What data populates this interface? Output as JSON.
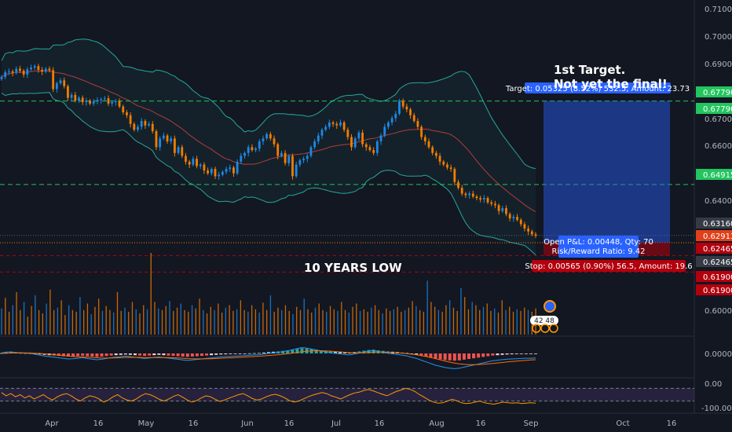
{
  "chart_data": [
    {
      "type": "candlestick",
      "title": "",
      "x_ticks": [
        "Apr",
        "16",
        "May",
        "16",
        "Jun",
        "16",
        "Jul",
        "16",
        "Aug",
        "16",
        "Sep",
        "Oct",
        "16"
      ],
      "y_ticks": [
        "0.71000",
        "0.70000",
        "0.69000",
        "0.68000",
        "0.67000",
        "0.66000",
        "0.64000",
        "0.60000"
      ],
      "ylim": [
        0.6045,
        0.7105
      ],
      "series": [
        {
          "values_close": [
            0.6862,
            0.6878,
            0.6881,
            0.6876,
            0.689,
            0.6883,
            0.687,
            0.6888,
            0.6894,
            0.6899,
            0.6886,
            0.688,
            0.689,
            0.6885,
            0.682,
            0.684,
            0.685,
            0.683,
            0.679,
            0.68,
            0.678,
            0.679,
            0.6775,
            0.678,
            0.677,
            0.6778,
            0.6782,
            0.6785,
            0.6788,
            0.677,
            0.6775,
            0.6778,
            0.676,
            0.674,
            0.673,
            0.67,
            0.668,
            0.669,
            0.671,
            0.6695,
            0.67,
            0.6675,
            0.662,
            0.665,
            0.666,
            0.664,
            0.665,
            0.66,
            0.662,
            0.659,
            0.657,
            0.656,
            0.658,
            0.6555,
            0.656,
            0.654,
            0.653,
            0.6545,
            0.652,
            0.6525,
            0.6535,
            0.6545,
            0.655,
            0.653,
            0.657,
            0.659,
            0.66,
            0.662,
            0.661,
            0.6615,
            0.664,
            0.665,
            0.6665,
            0.665,
            0.663,
            0.659,
            0.66,
            0.6565,
            0.659,
            0.652,
            0.656,
            0.6575,
            0.658,
            0.659,
            0.662,
            0.664,
            0.666,
            0.668,
            0.669,
            0.6705,
            0.67,
            0.6695,
            0.6705,
            0.668,
            0.6655,
            0.662,
            0.665,
            0.667,
            0.663,
            0.662,
            0.661,
            0.66,
            0.664,
            0.666,
            0.669,
            0.6705,
            0.672,
            0.6735,
            0.678,
            0.676,
            0.675,
            0.673,
            0.671,
            0.669,
            0.6655,
            0.664,
            0.662,
            0.66,
            0.659,
            0.657,
            0.656,
            0.655,
            0.6545,
            0.65,
            0.648,
            0.646,
            0.6455,
            0.646,
            0.645,
            0.6445,
            0.644,
            0.6445,
            0.643,
            0.6425,
            0.642,
            0.64,
            0.641,
            0.639,
            0.6375,
            0.638,
            0.637,
            0.6355,
            0.634,
            0.633,
            0.632,
            0.6315
          ]
        }
      ],
      "bollinger": true,
      "moving_average": true,
      "price_labels": [
        {
          "text": "0.67790",
          "color": "#22c55e"
        },
        {
          "text": "0.67790",
          "color": "#22c55e"
        },
        {
          "text": "0.64915",
          "color": "#22c55e"
        },
        {
          "text": "0.63160",
          "color": "#363a45"
        },
        {
          "text": "0.62913",
          "color": "#e0401a"
        },
        {
          "text": "0.62465",
          "color": "#b2000d"
        },
        {
          "text": "0.62465",
          "color": "#363a45"
        },
        {
          "text": "0.61900",
          "color": "#b2000d"
        },
        {
          "text": "0.61900",
          "color": "#b2000d"
        }
      ],
      "annotations": {
        "target_title_line1": "1st Target.",
        "target_title_line2": "Not yet the final!",
        "target_label": "Target: 0.05325 (8.52%) 532.5, Amount: 23.73",
        "pnl_line1": "Open P&L: 0.00448, Qty: 70",
        "pnl_line2": "Risk/Reward Ratio: 9.42",
        "stop_label": "Stop: 0.00565 (0.90%) 56.5, Amount: 19.6",
        "low_text": "10 YEARS LOW",
        "badge_count": "42 48"
      },
      "colors": {
        "up": "#1e88e5",
        "down": "#f57c00",
        "target": "#2962ff",
        "stop": "#b2000d",
        "green": "#22c55e"
      }
    },
    {
      "type": "bar",
      "title": "",
      "description": "Volume",
      "values": [
        0.32,
        0.45,
        0.28,
        0.36,
        0.52,
        0.3,
        0.4,
        0.22,
        0.35,
        0.48,
        0.3,
        0.26,
        0.38,
        0.55,
        0.3,
        0.33,
        0.42,
        0.24,
        0.36,
        0.3,
        0.28,
        0.46,
        0.3,
        0.38,
        0.25,
        0.34,
        0.44,
        0.29,
        0.35,
        0.3,
        0.27,
        0.52,
        0.29,
        0.33,
        0.28,
        0.4,
        0.31,
        0.26,
        0.36,
        0.31,
        1.0,
        0.4,
        0.32,
        0.3,
        0.35,
        0.41,
        0.29,
        0.33,
        0.38,
        0.3,
        0.28,
        0.36,
        0.32,
        0.44,
        0.3,
        0.26,
        0.34,
        0.3,
        0.38,
        0.27,
        0.33,
        0.36,
        0.29,
        0.31,
        0.42,
        0.3,
        0.28,
        0.36,
        0.31,
        0.27,
        0.39,
        0.3,
        0.48,
        0.28,
        0.33,
        0.3,
        0.36,
        0.29,
        0.25,
        0.34,
        0.3,
        0.44,
        0.31,
        0.27,
        0.33,
        0.38,
        0.3,
        0.28,
        0.35,
        0.31,
        0.29,
        0.4,
        0.3,
        0.27,
        0.34,
        0.38,
        0.29,
        0.31,
        0.28,
        0.33,
        0.36,
        0.3,
        0.26,
        0.32,
        0.29,
        0.31,
        0.34,
        0.28,
        0.3,
        0.33,
        0.41,
        0.35,
        0.3,
        0.28,
        0.66,
        0.4,
        0.34,
        0.3,
        0.28,
        0.36,
        0.42,
        0.33,
        0.29,
        0.57,
        0.46,
        0.31,
        0.4,
        0.36,
        0.3,
        0.34,
        0.38,
        0.29,
        0.32,
        0.27,
        0.42,
        0.3,
        0.34,
        0.28,
        0.31,
        0.29,
        0.33,
        0.3,
        0.28,
        0.32
      ],
      "ylim": [
        0,
        1
      ]
    },
    {
      "type": "histogram",
      "title": "",
      "description": "MACD",
      "y_ticks": [
        "0.00000"
      ],
      "values": [
        0.02,
        0.05,
        0.06,
        0.04,
        0.03,
        0.02,
        0.01,
        -0.02,
        -0.05,
        -0.08,
        -0.1,
        -0.12,
        -0.14,
        -0.16,
        -0.18,
        -0.17,
        -0.15,
        -0.13,
        -0.16,
        -0.18,
        -0.2,
        -0.18,
        -0.15,
        -0.12,
        -0.1,
        -0.08,
        -0.06,
        -0.08,
        -0.1,
        -0.12,
        -0.14,
        -0.12,
        -0.1,
        -0.08,
        -0.1,
        -0.12,
        -0.14,
        -0.16,
        -0.18,
        -0.2,
        -0.18,
        -0.16,
        -0.14,
        -0.12,
        -0.1,
        -0.08,
        -0.06,
        -0.05,
        -0.04,
        -0.03,
        -0.02,
        -0.01,
        0.01,
        0.02,
        0.03,
        0.05,
        0.08,
        0.1,
        0.12,
        0.15,
        0.18,
        0.22,
        0.26,
        0.3,
        0.28,
        0.25,
        0.22,
        0.18,
        0.15,
        0.12,
        0.1,
        0.08,
        0.06,
        0.05,
        0.08,
        0.12,
        0.16,
        0.2,
        0.22,
        0.18,
        0.15,
        0.12,
        0.1,
        0.08,
        0.05,
        0.03,
        -0.02,
        -0.06,
        -0.12,
        -0.18,
        -0.24,
        -0.3,
        -0.34,
        -0.38,
        -0.4,
        -0.42,
        -0.4,
        -0.36,
        -0.32,
        -0.28,
        -0.24,
        -0.2,
        -0.16,
        -0.12,
        -0.1,
        -0.08,
        -0.06,
        -0.05,
        -0.04,
        -0.03,
        -0.02,
        -0.02,
        -0.01
      ],
      "ylim": [
        -0.5,
        0.5
      ]
    },
    {
      "type": "line",
      "title": "",
      "description": "Williams %R",
      "y_ticks": [
        "0.00",
        "-100.00"
      ],
      "ylim": [
        -100,
        0
      ],
      "values": [
        -40,
        -55,
        -45,
        -60,
        -50,
        -65,
        -55,
        -70,
        -60,
        -50,
        -65,
        -75,
        -60,
        -50,
        -45,
        -55,
        -70,
        -80,
        -65,
        -55,
        -60,
        -70,
        -85,
        -75,
        -60,
        -50,
        -65,
        -75,
        -80,
        -70,
        -55,
        -45,
        -50,
        -60,
        -72,
        -80,
        -70,
        -58,
        -50,
        -62,
        -75,
        -85,
        -78,
        -65,
        -55,
        -60,
        -72,
        -82,
        -75,
        -66,
        -58,
        -50,
        -45,
        -55,
        -68,
        -75,
        -70,
        -60,
        -52,
        -48,
        -55,
        -65,
        -78,
        -85,
        -80,
        -70,
        -60,
        -52,
        -46,
        -40,
        -45,
        -55,
        -62,
        -70,
        -60,
        -50,
        -42,
        -38,
        -30,
        -25,
        -32,
        -40,
        -48,
        -55,
        -45,
        -35,
        -28,
        -20,
        -25,
        -35,
        -50,
        -62,
        -75,
        -85,
        -90,
        -88,
        -80,
        -72,
        -78,
        -88,
        -92,
        -90,
        -85,
        -80,
        -88,
        -92,
        -95,
        -90,
        -85,
        -88,
        -90,
        -88,
        -92,
        -90,
        -88,
        -90
      ]
    }
  ]
}
